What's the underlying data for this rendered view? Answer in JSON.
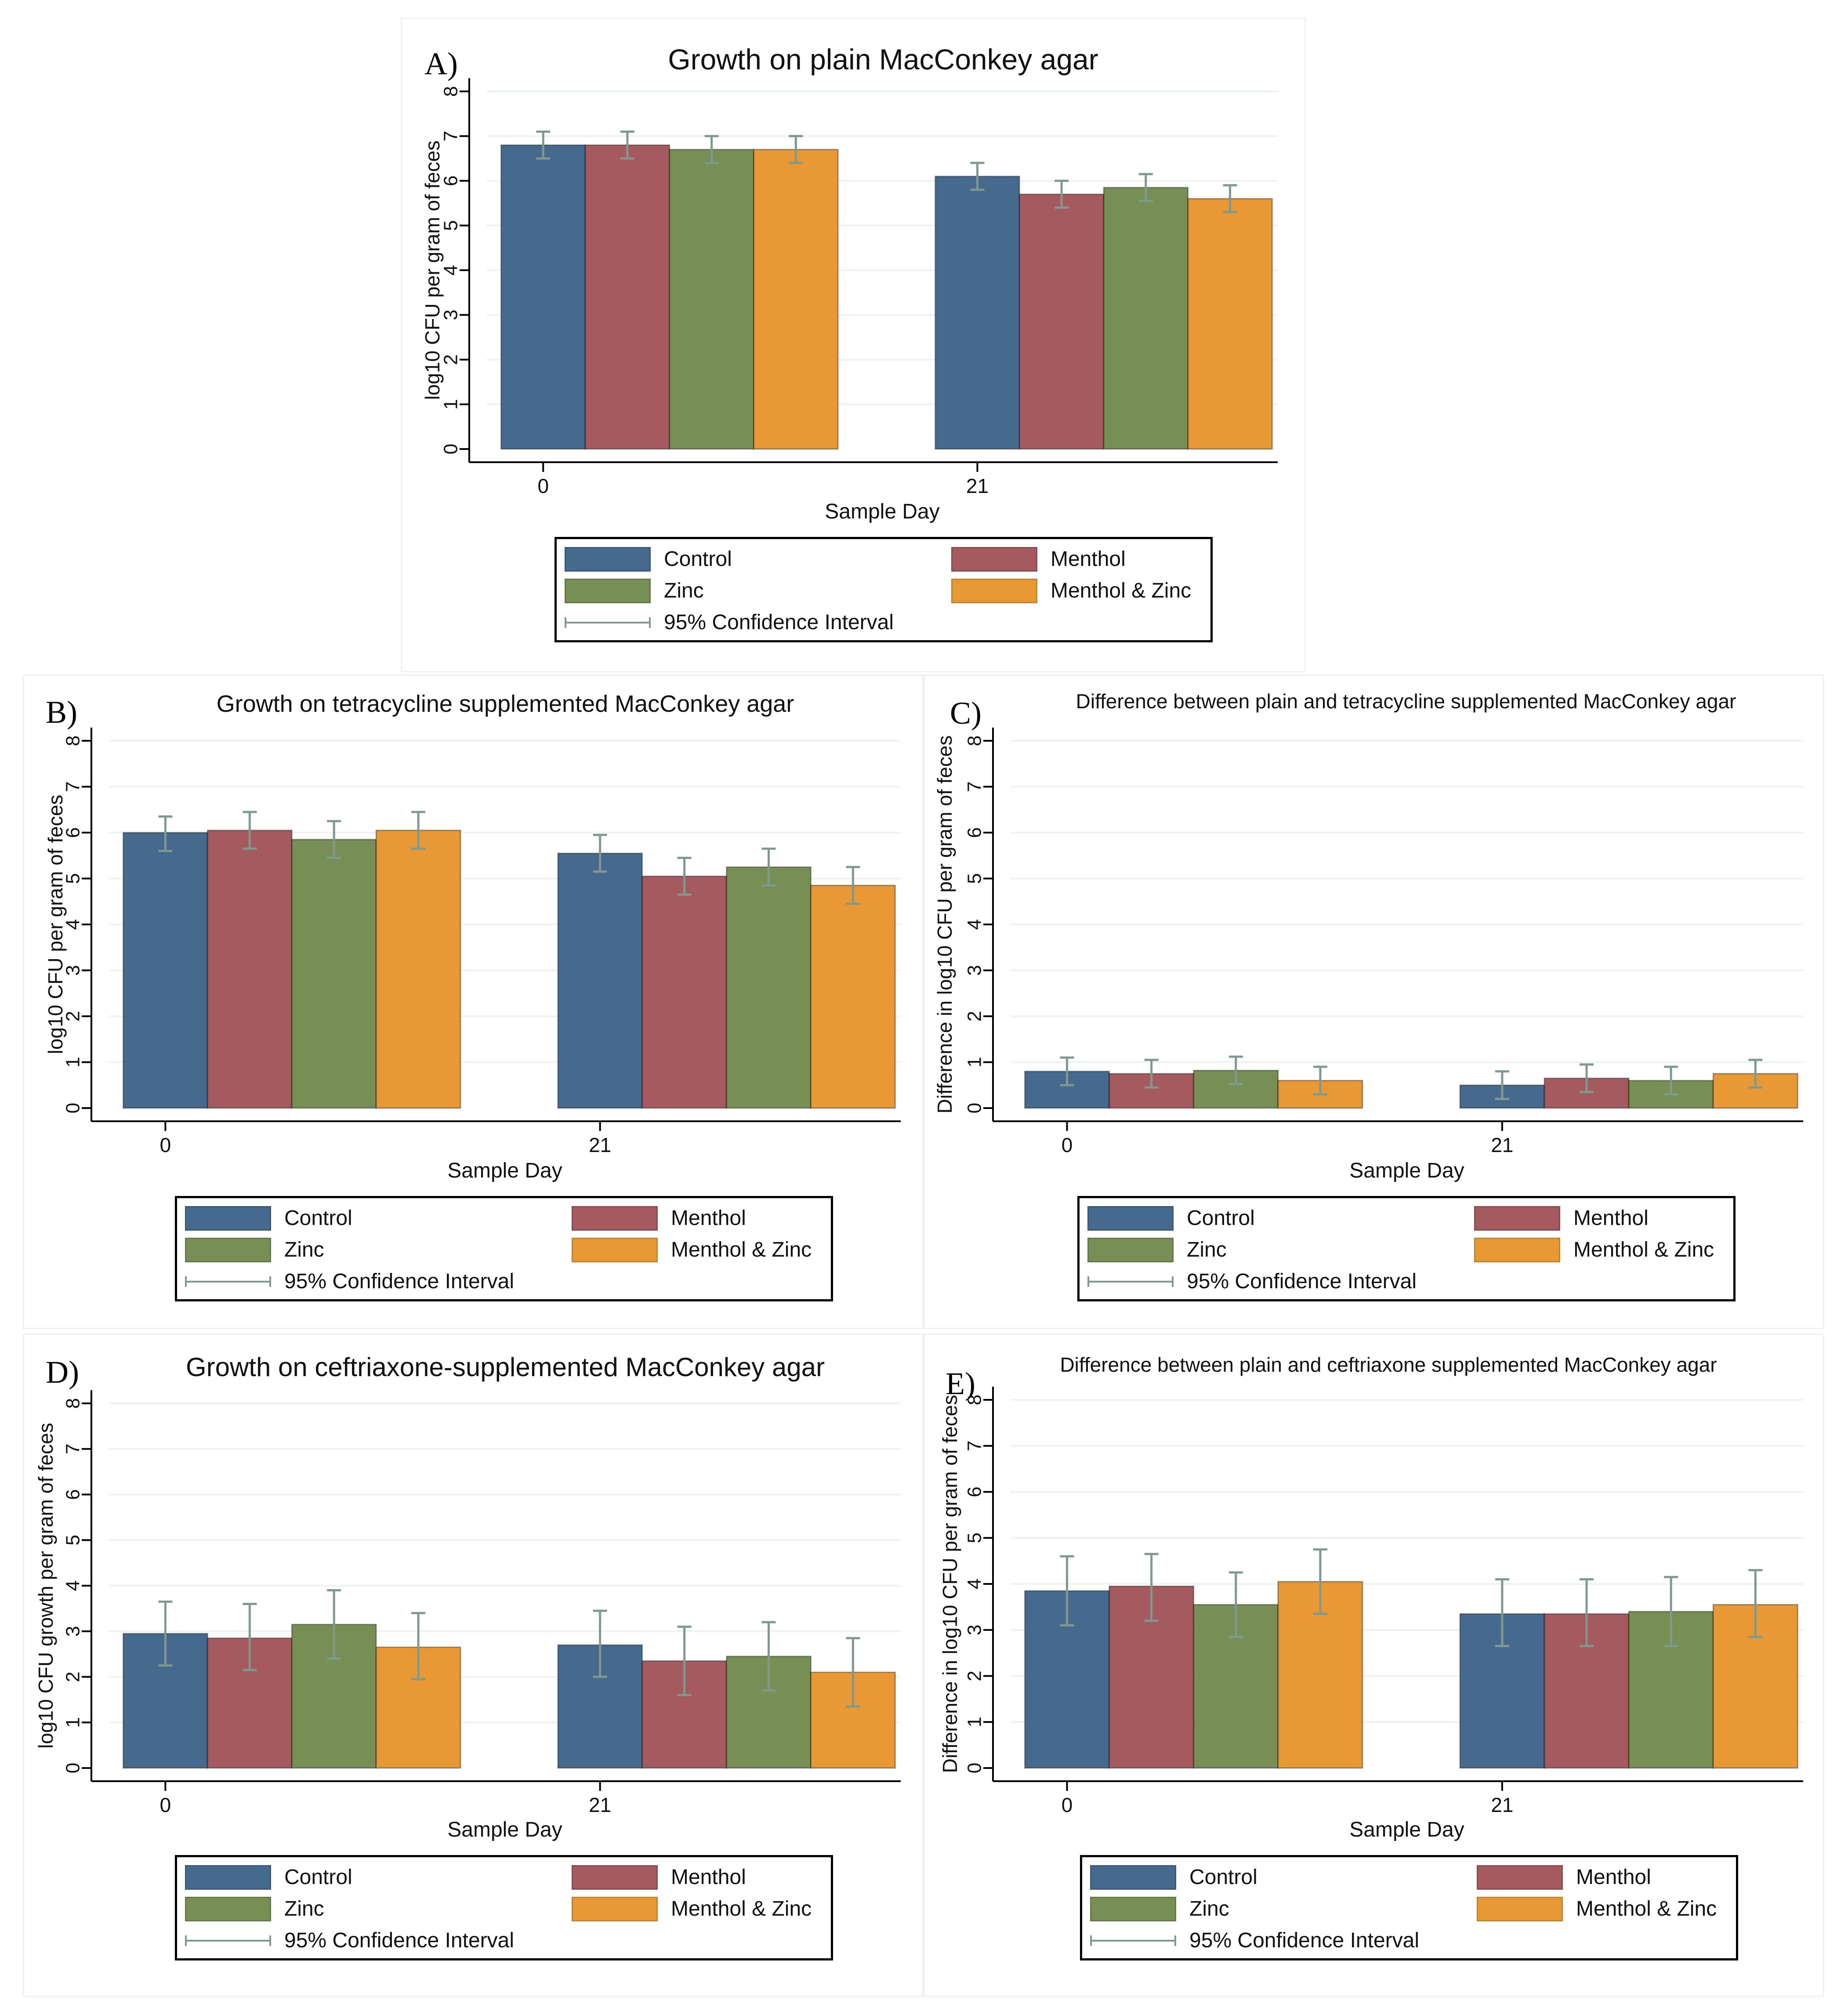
{
  "legend": {
    "control": "Control",
    "menthol": "Menthol",
    "zinc": "Zinc",
    "menthol_zinc": "Menthol & Zinc",
    "ci": "95% Confidence Interval"
  },
  "colors": {
    "control": "#456a8e",
    "menthol": "#a45a5e",
    "zinc": "#778f55",
    "menthol_zinc": "#e89935",
    "ci": "#7f9a8c",
    "grid": "#eef2f0",
    "axis": "#000000"
  },
  "chart_data": [
    {
      "panel": "A)",
      "type": "bar",
      "title": "Growth on plain MacConkey agar",
      "xlabel": "Sample Day",
      "ylabel": "log10 CFU per gram of feces",
      "categories": [
        "0",
        "21"
      ],
      "yticks": [
        "0",
        "1",
        "2",
        "3",
        "4",
        "5",
        "6",
        "7",
        "8"
      ],
      "ylim": [
        0,
        8
      ],
      "series": [
        {
          "name": "Control",
          "values": [
            6.8,
            6.1
          ],
          "ci_low": [
            6.5,
            5.8
          ],
          "ci_high": [
            7.1,
            6.4
          ]
        },
        {
          "name": "Menthol",
          "values": [
            6.8,
            5.7
          ],
          "ci_low": [
            6.5,
            5.4
          ],
          "ci_high": [
            7.1,
            6.0
          ]
        },
        {
          "name": "Zinc",
          "values": [
            6.7,
            5.85
          ],
          "ci_low": [
            6.4,
            5.55
          ],
          "ci_high": [
            7.0,
            6.15
          ]
        },
        {
          "name": "Menthol & Zinc",
          "values": [
            6.7,
            5.6
          ],
          "ci_low": [
            6.4,
            5.3
          ],
          "ci_high": [
            7.0,
            5.9
          ]
        }
      ]
    },
    {
      "panel": "B)",
      "type": "bar",
      "title": "Growth on tetracycline supplemented MacConkey agar",
      "xlabel": "Sample Day",
      "ylabel": "log10 CFU per gram of feces",
      "categories": [
        "0",
        "21"
      ],
      "yticks": [
        "0",
        "1",
        "2",
        "3",
        "4",
        "5",
        "6",
        "7",
        "8"
      ],
      "ylim": [
        0,
        8
      ],
      "series": [
        {
          "name": "Control",
          "values": [
            6.0,
            5.55
          ],
          "ci_low": [
            5.6,
            5.15
          ],
          "ci_high": [
            6.35,
            5.95
          ]
        },
        {
          "name": "Menthol",
          "values": [
            6.05,
            5.05
          ],
          "ci_low": [
            5.65,
            4.65
          ],
          "ci_high": [
            6.45,
            5.45
          ]
        },
        {
          "name": "Zinc",
          "values": [
            5.85,
            5.25
          ],
          "ci_low": [
            5.45,
            4.85
          ],
          "ci_high": [
            6.25,
            5.65
          ]
        },
        {
          "name": "Menthol & Zinc",
          "values": [
            6.05,
            4.85
          ],
          "ci_low": [
            5.65,
            4.45
          ],
          "ci_high": [
            6.45,
            5.25
          ]
        }
      ]
    },
    {
      "panel": "C)",
      "type": "bar",
      "title": "Difference between plain and tetracycline supplemented MacConkey agar",
      "xlabel": "Sample Day",
      "ylabel": "Difference in log10 CFU per gram of feces",
      "categories": [
        "0",
        "21"
      ],
      "yticks": [
        "0",
        "1",
        "2",
        "3",
        "4",
        "5",
        "6",
        "7",
        "8"
      ],
      "ylim": [
        0,
        8
      ],
      "series": [
        {
          "name": "Control",
          "values": [
            0.8,
            0.5
          ],
          "ci_low": [
            0.5,
            0.2
          ],
          "ci_high": [
            1.1,
            0.8
          ]
        },
        {
          "name": "Menthol",
          "values": [
            0.75,
            0.65
          ],
          "ci_low": [
            0.45,
            0.35
          ],
          "ci_high": [
            1.05,
            0.95
          ]
        },
        {
          "name": "Zinc",
          "values": [
            0.82,
            0.6
          ],
          "ci_low": [
            0.52,
            0.3
          ],
          "ci_high": [
            1.12,
            0.9
          ]
        },
        {
          "name": "Menthol & Zinc",
          "values": [
            0.6,
            0.75
          ],
          "ci_low": [
            0.3,
            0.45
          ],
          "ci_high": [
            0.9,
            1.05
          ]
        }
      ]
    },
    {
      "panel": "D)",
      "type": "bar",
      "title": "Growth on ceftriaxone-supplemented MacConkey agar",
      "xlabel": "Sample Day",
      "ylabel": "log10 CFU growth per gram of feces",
      "categories": [
        "0",
        "21"
      ],
      "yticks": [
        "0",
        "1",
        "2",
        "3",
        "4",
        "5",
        "6",
        "7",
        "8"
      ],
      "ylim": [
        0,
        8
      ],
      "series": [
        {
          "name": "Control",
          "values": [
            2.95,
            2.7
          ],
          "ci_low": [
            2.25,
            2.0
          ],
          "ci_high": [
            3.65,
            3.45
          ]
        },
        {
          "name": "Menthol",
          "values": [
            2.85,
            2.35
          ],
          "ci_low": [
            2.15,
            1.6
          ],
          "ci_high": [
            3.6,
            3.1
          ]
        },
        {
          "name": "Zinc",
          "values": [
            3.15,
            2.45
          ],
          "ci_low": [
            2.4,
            1.7
          ],
          "ci_high": [
            3.9,
            3.2
          ]
        },
        {
          "name": "Menthol & Zinc",
          "values": [
            2.65,
            2.1
          ],
          "ci_low": [
            1.95,
            1.35
          ],
          "ci_high": [
            3.4,
            2.85
          ]
        }
      ]
    },
    {
      "panel": "E)",
      "type": "bar",
      "title": "Difference between plain and ceftriaxone supplemented MacConkey agar",
      "xlabel": "Sample Day",
      "ylabel": "Difference in log10 CFU per gram of feces",
      "categories": [
        "0",
        "21"
      ],
      "yticks": [
        "0",
        "1",
        "2",
        "3",
        "4",
        "5",
        "6",
        "7",
        "8"
      ],
      "ylim": [
        0,
        8
      ],
      "series": [
        {
          "name": "Control",
          "values": [
            3.85,
            3.35
          ],
          "ci_low": [
            3.1,
            2.65
          ],
          "ci_high": [
            4.6,
            4.1
          ]
        },
        {
          "name": "Menthol",
          "values": [
            3.95,
            3.35
          ],
          "ci_low": [
            3.2,
            2.65
          ],
          "ci_high": [
            4.65,
            4.1
          ]
        },
        {
          "name": "Zinc",
          "values": [
            3.55,
            3.4
          ],
          "ci_low": [
            2.85,
            2.65
          ],
          "ci_high": [
            4.25,
            4.15
          ]
        },
        {
          "name": "Menthol & Zinc",
          "values": [
            4.05,
            3.55
          ],
          "ci_low": [
            3.35,
            2.85
          ],
          "ci_high": [
            4.75,
            4.3
          ]
        }
      ]
    }
  ]
}
